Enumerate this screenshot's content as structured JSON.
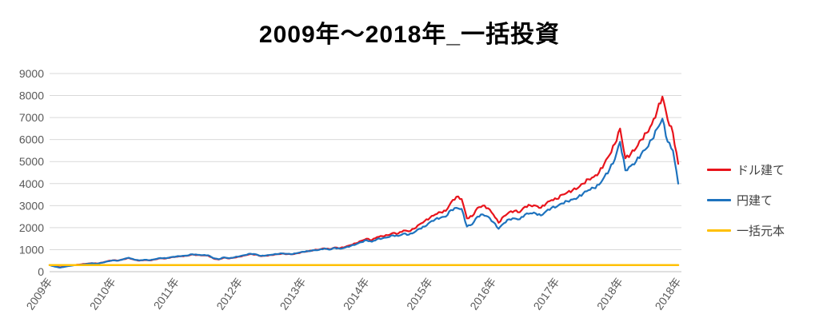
{
  "chart_data": {
    "type": "line",
    "title": "2009年～2018年_一括投資",
    "x_unit": "month",
    "x_range": [
      "2009-01",
      "2018-12"
    ],
    "x_tick_labels": [
      "2009年",
      "2010年",
      "2011年",
      "2012年",
      "2013年",
      "2014年",
      "2015年",
      "2016年",
      "2017年",
      "2018年",
      "2018年"
    ],
    "x_tick_month_indices": [
      0,
      12,
      24,
      36,
      48,
      60,
      72,
      84,
      96,
      108,
      119
    ],
    "y_ticks": [
      0,
      1000,
      2000,
      3000,
      4000,
      5000,
      6000,
      7000,
      8000,
      9000
    ],
    "ylim": [
      0,
      9000
    ],
    "grid": "horizontal",
    "legend_position": "right",
    "series": [
      {
        "name": "ドル建て",
        "slug": "series-line-dollar",
        "color": "#e8141c",
        "stroke_width": 2.2,
        "values": [
          300,
          245,
          200,
          240,
          285,
          310,
          335,
          360,
          385,
          370,
          415,
          480,
          520,
          505,
          565,
          620,
          545,
          500,
          530,
          510,
          560,
          610,
          600,
          650,
          680,
          700,
          720,
          780,
          755,
          740,
          730,
          600,
          550,
          640,
          600,
          640,
          685,
          740,
          800,
          775,
          705,
          725,
          760,
          790,
          820,
          800,
          790,
          840,
          900,
          930,
          980,
          1005,
          1060,
          1020,
          1100,
          1070,
          1130,
          1210,
          1290,
          1400,
          1500,
          1430,
          1570,
          1610,
          1660,
          1760,
          1730,
          1870,
          1830,
          1950,
          2150,
          2300,
          2450,
          2600,
          2700,
          2760,
          3150,
          3400,
          3300,
          2420,
          2520,
          2900,
          3000,
          2880,
          2600,
          2220,
          2520,
          2700,
          2760,
          2700,
          2950,
          3010,
          3000,
          2900,
          3100,
          3250,
          3300,
          3500,
          3600,
          3700,
          3800,
          4000,
          4200,
          4300,
          4500,
          4900,
          5300,
          5800,
          6500,
          5150,
          5350,
          5600,
          6000,
          6300,
          6700,
          7300,
          7950,
          6900,
          6300,
          4900
        ]
      },
      {
        "name": "円建て",
        "slug": "series-line-yen",
        "color": "#1e73be",
        "stroke_width": 2.2,
        "values": [
          300,
          230,
          185,
          230,
          270,
          300,
          320,
          350,
          380,
          360,
          410,
          470,
          515,
          500,
          570,
          630,
          550,
          510,
          540,
          520,
          570,
          620,
          610,
          660,
          690,
          710,
          730,
          790,
          770,
          750,
          745,
          615,
          565,
          650,
          610,
          655,
          700,
          755,
          815,
          790,
          715,
          735,
          770,
          800,
          830,
          810,
          800,
          850,
          905,
          930,
          975,
          990,
          1050,
          1000,
          1080,
          1040,
          1100,
          1170,
          1240,
          1340,
          1430,
          1360,
          1480,
          1510,
          1560,
          1650,
          1620,
          1730,
          1680,
          1780,
          1950,
          2050,
          2250,
          2380,
          2450,
          2500,
          2800,
          2900,
          2850,
          2050,
          2150,
          2500,
          2600,
          2500,
          2250,
          1950,
          2200,
          2380,
          2420,
          2380,
          2600,
          2650,
          2650,
          2550,
          2750,
          2900,
          2950,
          3100,
          3200,
          3280,
          3370,
          3550,
          3700,
          3800,
          3950,
          4300,
          4650,
          5100,
          5900,
          4600,
          4800,
          5000,
          5350,
          5600,
          6000,
          6500,
          6950,
          5900,
          5500,
          4000
        ]
      },
      {
        "name": "一括元本",
        "slug": "series-line-principal",
        "color": "#ffc000",
        "stroke_width": 2.5,
        "constant": 300
      }
    ],
    "style": {
      "background": "#ffffff",
      "grid_color": "#d9d9d9",
      "axis_color": "#bfbfbf",
      "tick_label_color": "#595959",
      "title_color": "#000000",
      "legend_text_color": "#404040"
    }
  }
}
